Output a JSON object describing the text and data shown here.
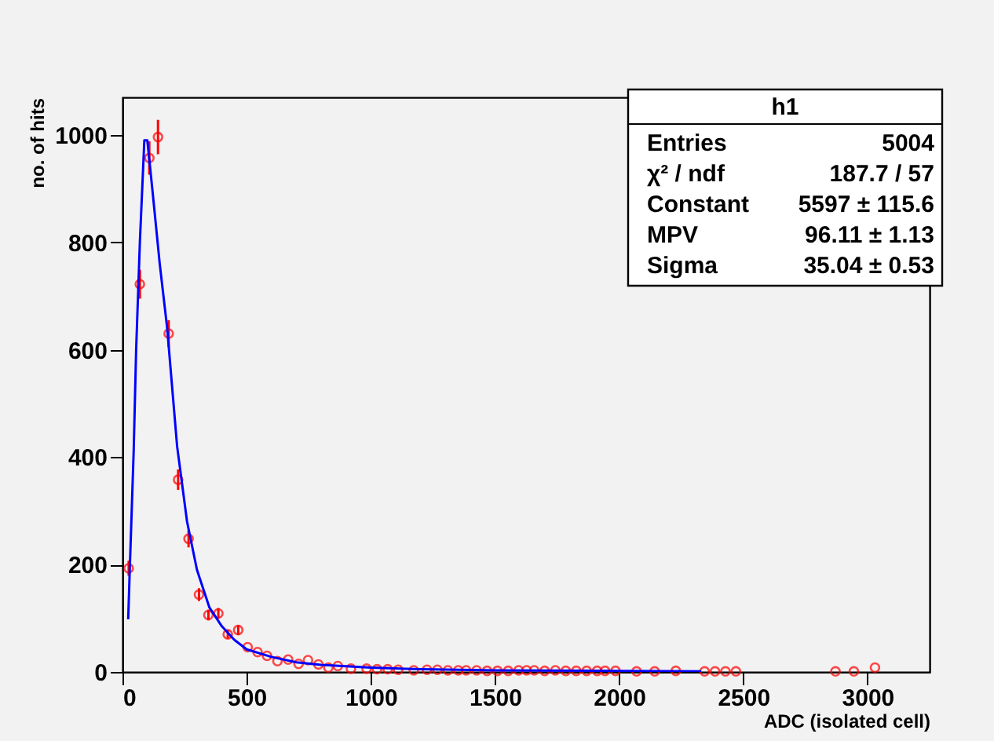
{
  "chart_data": {
    "type": "scatter",
    "xlabel": "ADC (isolated cell)",
    "ylabel": "no. of hits",
    "xlim": [
      0,
      3250
    ],
    "ylim": [
      0,
      1070
    ],
    "xticks": [
      0,
      500,
      1000,
      1500,
      2000,
      2500,
      3000
    ],
    "yticks": [
      0,
      200,
      400,
      600,
      800,
      1000
    ],
    "annotations": [
      "h1",
      "Entries",
      "5004",
      "χ² / ndf",
      "187.7 / 57",
      "Constant",
      "5597 ± 115.6",
      "MPV",
      "96.11 ± 1.13",
      "Sigma",
      "35.04 ± 0.53"
    ],
    "series": [
      {
        "color": "#ff0000",
        "marker": "circle",
        "x": [
          25,
          70,
          108,
          143,
          186,
          224,
          266,
          308,
          346,
          386,
          424,
          466,
          504,
          544,
          582,
          624,
          667,
          709,
          747,
          789,
          829,
          867,
          920,
          983,
          1025,
          1068,
          1110,
          1173,
          1226,
          1268,
          1310,
          1352,
          1384,
          1426,
          1468,
          1510,
          1553,
          1595,
          1627,
          1658,
          1700,
          1743,
          1785,
          1827,
          1869,
          1911,
          1943,
          1985,
          2070,
          2143,
          2228,
          2344,
          2386,
          2428,
          2470,
          2871,
          2945,
          3030
        ],
        "values": [
          193,
          722,
          957,
          996,
          630,
          358,
          248,
          144,
          106,
          109,
          70,
          78,
          46,
          37,
          30,
          20,
          23,
          15,
          22,
          14,
          8,
          11,
          6,
          6,
          5,
          5,
          4,
          3,
          4,
          4,
          3,
          3,
          3,
          3,
          2,
          2,
          2,
          3,
          3,
          3,
          2,
          3,
          2,
          2,
          2,
          2,
          2,
          2,
          1,
          1,
          2,
          1,
          1,
          1,
          1,
          1,
          1,
          8
        ],
        "errors": [
          14,
          27,
          31,
          32,
          25,
          19,
          16,
          12,
          10,
          10,
          8,
          9,
          null,
          null,
          null,
          null,
          null,
          null,
          null,
          null,
          null,
          null,
          null,
          null,
          null,
          null,
          null,
          null,
          null,
          null,
          null,
          null,
          null,
          null,
          null,
          null,
          null,
          null,
          null,
          null,
          null,
          null,
          null,
          null,
          null,
          null,
          null,
          null,
          null,
          null,
          null,
          null,
          null,
          null,
          null,
          null,
          null,
          null
        ]
      },
      {
        "type": "line",
        "color": "#0000ff",
        "x": [
          23,
          30,
          45,
          55,
          70,
          88,
          100,
          120,
          150,
          180,
          220,
          260,
          300,
          350,
          400,
          450,
          500,
          600,
          700,
          800,
          1000,
          1200,
          1500,
          2000,
          2330
        ],
        "values": [
          98,
          200,
          410,
          600,
          800,
          990,
          990,
          900,
          760,
          640,
          420,
          280,
          190,
          120,
          85,
          60,
          42,
          28,
          18,
          13,
          8,
          5,
          3,
          2,
          1
        ]
      }
    ]
  }
}
